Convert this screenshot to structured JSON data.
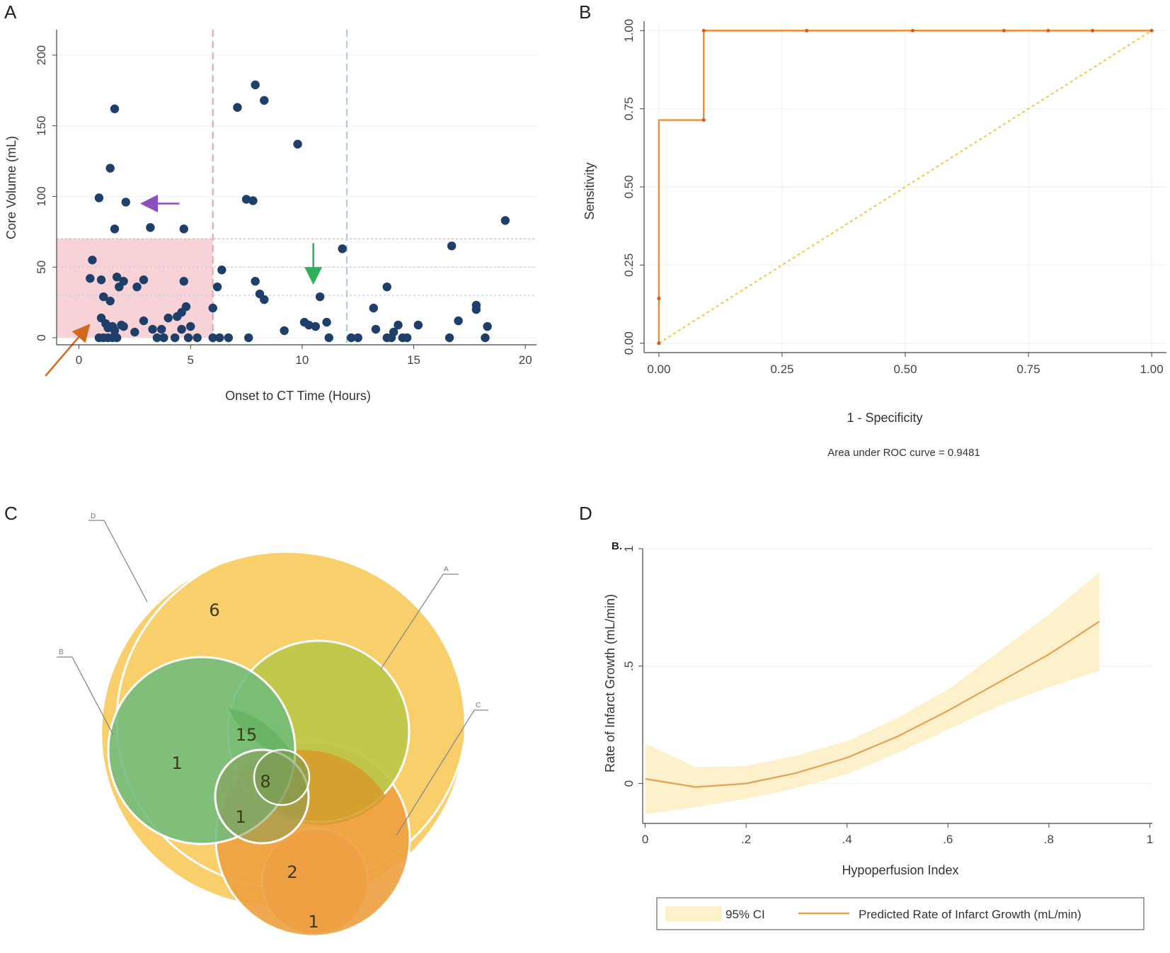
{
  "panel_letters": {
    "a": "A",
    "b": "B",
    "c": "C",
    "d": "D",
    "d_inner": "B."
  },
  "colors": {
    "scatter_point": "#1f3f6b",
    "shade": "#f7d3d8",
    "line_pink": "#e8a0b4",
    "line_blue": "#a8c8ea",
    "roc_line": "#e8903c",
    "diag": "#f0c840",
    "ci_fill": "#fdf1cc",
    "pred_line": "#e8a050",
    "arrow_orange": "#d2691e",
    "arrow_purple": "#8a4fc0",
    "arrow_green": "#2eb05a",
    "venn_D": "#f8cf6a",
    "venn_A": "#bcc84a",
    "venn_B": "#6fbc7c",
    "venn_C": "#eea040"
  },
  "chart_data": [
    {
      "id": "A",
      "type": "scatter",
      "title": "",
      "xlabel": "Onset to CT Time (Hours)",
      "ylabel": "Core Volume (mL)",
      "xlim": [
        -1,
        20.5
      ],
      "ylim": [
        -5,
        218
      ],
      "xticks": [
        "0",
        "5",
        "10",
        "15",
        "20"
      ],
      "xtick_values": [
        0,
        5,
        10,
        15,
        20
      ],
      "yticks": [
        "0",
        "50",
        "100",
        "150",
        "200"
      ],
      "ytick_values": [
        0,
        50,
        100,
        150,
        200
      ],
      "ref_lines": {
        "vertical_pink_x": 6,
        "vertical_blue_x": 12,
        "horizontal_y": [
          70,
          50,
          30
        ]
      },
      "shaded_region": {
        "x": [
          -1,
          6
        ],
        "y": [
          0,
          70
        ]
      },
      "annotations": [
        {
          "type": "arrow",
          "color": "orange",
          "from": [
            -1.5,
            -27
          ],
          "to": [
            0.4,
            8
          ]
        },
        {
          "type": "arrow",
          "color": "purple",
          "from": [
            4.5,
            95
          ],
          "to": [
            2.9,
            95
          ]
        },
        {
          "type": "arrow",
          "color": "green",
          "from": [
            10.5,
            67
          ],
          "to": [
            10.5,
            40
          ]
        }
      ],
      "points": [
        [
          0.6,
          55
        ],
        [
          0.5,
          42
        ],
        [
          0.9,
          99
        ],
        [
          1.6,
          162
        ],
        [
          1.4,
          120
        ],
        [
          2.1,
          96
        ],
        [
          1.6,
          77
        ],
        [
          3.2,
          78
        ],
        [
          4.7,
          77
        ],
        [
          1.0,
          41
        ],
        [
          1.7,
          43
        ],
        [
          2.0,
          40
        ],
        [
          2.6,
          36
        ],
        [
          2.9,
          41
        ],
        [
          1.8,
          36
        ],
        [
          1.1,
          29
        ],
        [
          1.4,
          26
        ],
        [
          4.7,
          40
        ],
        [
          4.8,
          22
        ],
        [
          4.6,
          18
        ],
        [
          4.4,
          15
        ],
        [
          4.0,
          14
        ],
        [
          3.7,
          6
        ],
        [
          3.3,
          6
        ],
        [
          2.9,
          12
        ],
        [
          1.0,
          14
        ],
        [
          1.2,
          10
        ],
        [
          1.5,
          8
        ],
        [
          1.9,
          9
        ],
        [
          2.0,
          8
        ],
        [
          1.3,
          7
        ],
        [
          1.6,
          5
        ],
        [
          2.5,
          4
        ],
        [
          0.9,
          0
        ],
        [
          1.1,
          0
        ],
        [
          1.3,
          0
        ],
        [
          1.5,
          0
        ],
        [
          1.7,
          0
        ],
        [
          3.5,
          0
        ],
        [
          3.8,
          0
        ],
        [
          4.3,
          0
        ],
        [
          4.9,
          0
        ],
        [
          4.6,
          6
        ],
        [
          5.0,
          8
        ],
        [
          5.3,
          0
        ],
        [
          6.0,
          21
        ],
        [
          6.2,
          36
        ],
        [
          6.4,
          48
        ],
        [
          6.0,
          0
        ],
        [
          6.3,
          0
        ],
        [
          6.7,
          0
        ],
        [
          7.1,
          163
        ],
        [
          7.5,
          98
        ],
        [
          7.8,
          97
        ],
        [
          7.9,
          179
        ],
        [
          8.3,
          168
        ],
        [
          7.9,
          40
        ],
        [
          8.1,
          31
        ],
        [
          8.3,
          27
        ],
        [
          7.6,
          0
        ],
        [
          9.2,
          5
        ],
        [
          9.8,
          137
        ],
        [
          10.1,
          11
        ],
        [
          10.3,
          9
        ],
        [
          10.6,
          8
        ],
        [
          10.8,
          29
        ],
        [
          11.1,
          11
        ],
        [
          11.2,
          0
        ],
        [
          11.8,
          63
        ],
        [
          12.2,
          0
        ],
        [
          12.5,
          0
        ],
        [
          13.2,
          21
        ],
        [
          13.3,
          6
        ],
        [
          13.8,
          36
        ],
        [
          13.8,
          0
        ],
        [
          14.0,
          0
        ],
        [
          14.1,
          4
        ],
        [
          14.3,
          9
        ],
        [
          14.5,
          0
        ],
        [
          14.7,
          0
        ],
        [
          15.2,
          9
        ],
        [
          16.6,
          0
        ],
        [
          16.7,
          65
        ],
        [
          17.0,
          12
        ],
        [
          17.8,
          23
        ],
        [
          17.8,
          20
        ],
        [
          18.3,
          8
        ],
        [
          18.2,
          0
        ],
        [
          19.1,
          83
        ]
      ]
    },
    {
      "id": "B",
      "type": "line",
      "title": "",
      "xlabel": "1 - Specificity",
      "ylabel": "Sensitivity",
      "caption": "Area under ROC curve = 0.9481",
      "xlim": [
        -0.03,
        1.03
      ],
      "ylim": [
        -0.03,
        1.03
      ],
      "xticks": [
        "0.00",
        "0.25",
        "0.50",
        "0.75",
        "1.00"
      ],
      "xtick_values": [
        0,
        0.25,
        0.5,
        0.75,
        1.0
      ],
      "yticks": [
        "0.00",
        "0.25",
        "0.50",
        "0.75",
        "1.00"
      ],
      "ytick_values": [
        0,
        0.25,
        0.5,
        0.75,
        1.0
      ],
      "series": [
        {
          "name": "ROC",
          "x": [
            0,
            0,
            0,
            0.091,
            0.091,
            0.3,
            0.515,
            0.7,
            0.79,
            0.88,
            1.0
          ],
          "y": [
            0,
            0.143,
            0.714,
            0.714,
            1.0,
            1.0,
            1.0,
            1.0,
            1.0,
            1.0,
            1.0
          ]
        },
        {
          "name": "reference",
          "x": [
            0,
            1
          ],
          "y": [
            0,
            1
          ]
        }
      ],
      "markers": [
        [
          0,
          0
        ],
        [
          0,
          0.143
        ],
        [
          0.091,
          0.714
        ],
        [
          0.091,
          1.0
        ],
        [
          0.3,
          1.0
        ],
        [
          0.515,
          1.0
        ],
        [
          0.7,
          1.0
        ],
        [
          0.79,
          1.0
        ],
        [
          0.88,
          1.0
        ],
        [
          1.0,
          1.0
        ]
      ]
    },
    {
      "id": "C",
      "type": "venn",
      "sets": [
        "D",
        "A",
        "B",
        "C"
      ],
      "regions": [
        {
          "sets": [
            "D"
          ],
          "value": "6"
        },
        {
          "sets": [
            "D",
            "B"
          ],
          "value": "1"
        },
        {
          "sets": [
            "D",
            "A",
            "B"
          ],
          "value": "15"
        },
        {
          "sets": [
            "D",
            "A",
            "B",
            "C"
          ],
          "value": "8"
        },
        {
          "sets": [
            "D",
            "B",
            "C"
          ],
          "value": "1"
        },
        {
          "sets": [
            "D",
            "C"
          ],
          "value": "2"
        },
        {
          "sets": [
            "C"
          ],
          "value": "1"
        }
      ]
    },
    {
      "id": "D",
      "type": "line",
      "title": "",
      "xlabel": "Hypoperfusion Index",
      "ylabel": "Rate of Infarct Growth (mL/min)",
      "xlim": [
        -0.005,
        1.005
      ],
      "ylim": [
        -0.17,
        1.0
      ],
      "xticks": [
        "0",
        ".2",
        ".4",
        ".6",
        ".8",
        "1"
      ],
      "xtick_values": [
        0,
        0.2,
        0.4,
        0.6,
        0.8,
        1.0
      ],
      "yticks": [
        "0",
        ".5",
        "1"
      ],
      "ytick_values": [
        0,
        0.5,
        1.0
      ],
      "x": [
        0,
        0.1,
        0.2,
        0.3,
        0.4,
        0.5,
        0.6,
        0.7,
        0.8,
        0.9
      ],
      "series": [
        {
          "name": "Predicted Rate of Infarct Growth (mL/min)",
          "values": [
            0.02,
            -0.015,
            0.0,
            0.045,
            0.11,
            0.2,
            0.31,
            0.43,
            0.55,
            0.69
          ]
        },
        {
          "name": "95% CI lower",
          "values": [
            -0.13,
            -0.1,
            -0.065,
            -0.02,
            0.04,
            0.13,
            0.23,
            0.33,
            0.41,
            0.48
          ]
        },
        {
          "name": "95% CI upper",
          "values": [
            0.17,
            0.07,
            0.075,
            0.12,
            0.18,
            0.28,
            0.4,
            0.56,
            0.72,
            0.9
          ]
        }
      ],
      "legend": [
        "95% CI",
        "Predicted Rate of Infarct Growth (mL/min)"
      ],
      "legend_position": "bottom"
    }
  ]
}
